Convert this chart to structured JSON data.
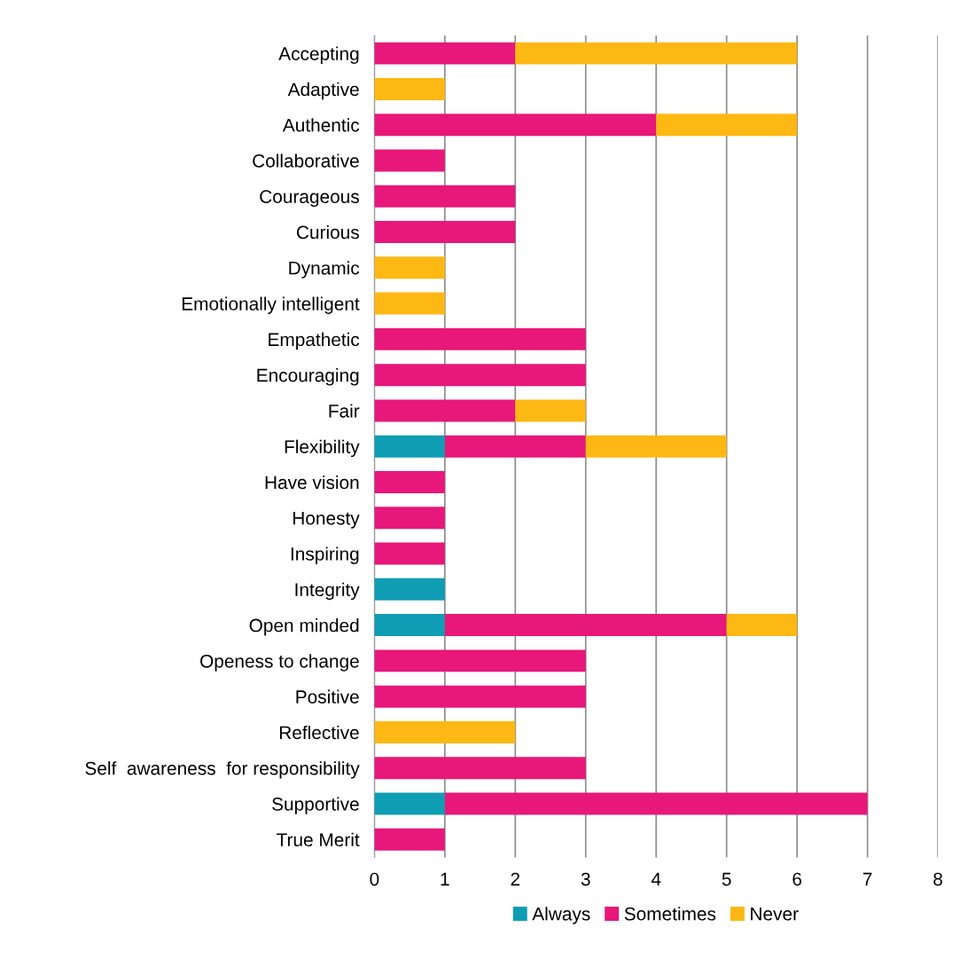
{
  "chart_data": {
    "type": "bar",
    "orientation": "horizontal",
    "stacked": true,
    "categories": [
      "Accepting",
      "Adaptive",
      "Authentic",
      "Collaborative",
      "Courageous",
      "Curious",
      "Dynamic",
      "Emotionally intelligent",
      "Empathetic",
      "Encouraging",
      "Fair",
      "Flexibility",
      "Have vision",
      "Honesty",
      "Inspiring",
      "Integrity",
      "Open minded",
      "Openess to change",
      "Positive",
      "Reflective",
      "Self  awareness  for responsibility",
      "Supportive",
      "True Merit"
    ],
    "series": [
      {
        "name": "Always",
        "color": "#0f9db4",
        "values": [
          0,
          0,
          0,
          0,
          0,
          0,
          0,
          0,
          0,
          0,
          0,
          1,
          0,
          0,
          0,
          1,
          1,
          0,
          0,
          0,
          0,
          1,
          0
        ]
      },
      {
        "name": "Sometimes",
        "color": "#e8177a",
        "values": [
          2,
          0,
          4,
          1,
          2,
          2,
          0,
          0,
          3,
          3,
          2,
          2,
          1,
          1,
          1,
          0,
          4,
          3,
          3,
          0,
          3,
          6,
          1
        ]
      },
      {
        "name": "Never",
        "color": "#fdb813",
        "values": [
          4,
          1,
          2,
          0,
          0,
          0,
          1,
          1,
          0,
          0,
          1,
          2,
          0,
          0,
          0,
          0,
          1,
          0,
          0,
          2,
          0,
          0,
          0
        ]
      }
    ],
    "xlim": [
      0,
      8
    ],
    "xticks": [
      0,
      1,
      2,
      3,
      4,
      5,
      6,
      7,
      8
    ],
    "grid": "x",
    "legend": "bottom"
  }
}
